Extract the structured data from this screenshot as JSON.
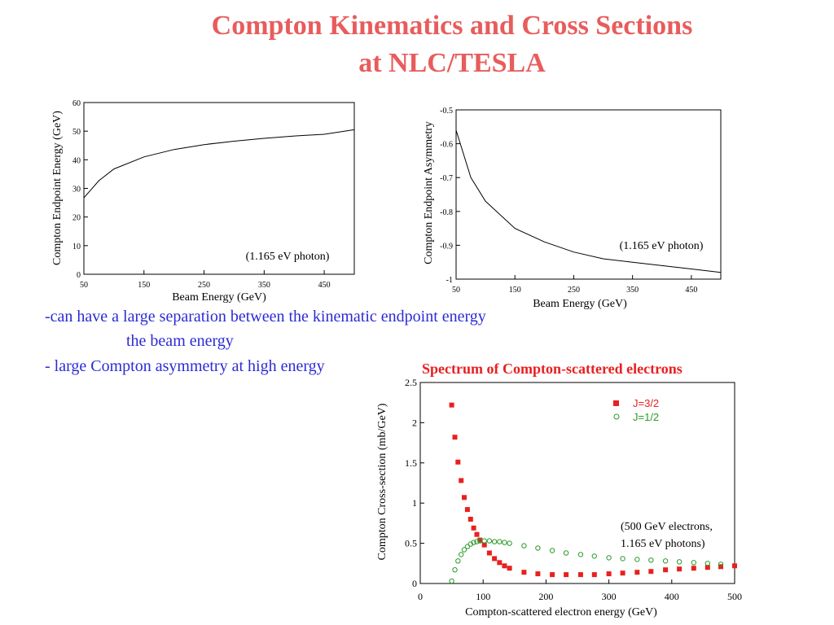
{
  "slide": {
    "title_line1": "Compton Kinematics and Cross Sections",
    "title_line2": "at NLC/TESLA",
    "bullet1_line1": "-can have a large separation between the kinematic endpoint energy",
    "bullet1_line2": "the beam energy",
    "bullet2": "- large Compton asymmetry at high energy",
    "spectrum_title": "Spectrum of Compton-scattered electrons"
  },
  "colors": {
    "title": "#e85c5c",
    "bullets": "#2b2bd6",
    "j32": "#e82020",
    "j12": "#2a9a2a"
  },
  "chart_data": [
    {
      "type": "line",
      "xlabel": "Beam Energy (GeV)",
      "ylabel": "Compton  Endpoint Energy (GeV)",
      "xlim": [
        50,
        500
      ],
      "ylim": [
        0,
        60
      ],
      "xticks": [
        50,
        150,
        250,
        350,
        450
      ],
      "yticks": [
        0,
        10,
        20,
        30,
        40,
        50,
        60
      ],
      "annotation": "(1.165 eV photon)",
      "series": [
        {
          "x": [
            50,
            75,
            100,
            150,
            200,
            250,
            300,
            350,
            400,
            450,
            500
          ],
          "y": [
            26.7,
            32.7,
            36.8,
            41.0,
            43.6,
            45.3,
            46.5,
            47.5,
            48.3,
            48.9,
            50.5
          ]
        }
      ]
    },
    {
      "type": "line",
      "xlabel": "Beam Energy (GeV)",
      "ylabel": "Compton Endpoint Asymmetry",
      "xlim": [
        50,
        500
      ],
      "ylim": [
        -1,
        -0.5
      ],
      "xticks": [
        50,
        150,
        250,
        350,
        450
      ],
      "yticks": [
        -1,
        -0.9,
        -0.8,
        -0.7,
        -0.6,
        -0.5
      ],
      "ytick_labels": [
        "-1",
        "-0.9",
        "-0.8",
        "-0.7",
        "-0.6",
        "-0.5"
      ],
      "annotation": "(1.165 eV photon)",
      "series": [
        {
          "x": [
            50,
            75,
            100,
            150,
            200,
            250,
            300,
            350,
            400,
            450,
            500
          ],
          "y": [
            -0.56,
            -0.7,
            -0.77,
            -0.85,
            -0.89,
            -0.92,
            -0.94,
            -0.95,
            -0.96,
            -0.97,
            -0.98
          ]
        }
      ]
    },
    {
      "type": "scatter",
      "xlabel": "Compton-scattered electron energy (GeV)",
      "ylabel": "Compton Cross-section (mb/GeV)",
      "xlim": [
        0,
        500
      ],
      "ylim": [
        0,
        2.5
      ],
      "xticks": [
        0,
        100,
        200,
        300,
        400,
        500
      ],
      "yticks": [
        0,
        0.5,
        1,
        1.5,
        2,
        2.5
      ],
      "ytick_labels": [
        "0",
        "0.5",
        "1",
        "1.5",
        "2",
        "2.5"
      ],
      "annotation_line1": "(500 GeV electrons,",
      "annotation_line2": "1.165 eV photons)",
      "legend_position": "top-right",
      "series": [
        {
          "name": "J=3/2",
          "marker": "filled-square",
          "x": [
            50,
            55,
            60,
            65,
            70,
            75,
            80,
            85,
            90,
            95,
            102,
            110,
            118,
            126,
            134,
            142,
            165,
            187,
            210,
            232,
            255,
            277,
            300,
            322,
            345,
            367,
            390,
            412,
            435,
            457,
            478,
            500
          ],
          "y": [
            2.22,
            1.82,
            1.51,
            1.28,
            1.07,
            0.92,
            0.8,
            0.69,
            0.61,
            0.54,
            0.48,
            0.38,
            0.31,
            0.26,
            0.22,
            0.19,
            0.14,
            0.12,
            0.11,
            0.11,
            0.11,
            0.11,
            0.12,
            0.13,
            0.14,
            0.15,
            0.17,
            0.18,
            0.19,
            0.2,
            0.21,
            0.22
          ]
        },
        {
          "name": "J=1/2",
          "marker": "open-circle",
          "x": [
            50,
            55,
            60,
            65,
            70,
            75,
            80,
            85,
            90,
            95,
            102,
            110,
            118,
            126,
            134,
            142,
            165,
            187,
            210,
            232,
            255,
            277,
            300,
            322,
            345,
            367,
            390,
            412,
            435,
            457,
            478
          ],
          "y": [
            0.03,
            0.17,
            0.28,
            0.36,
            0.42,
            0.46,
            0.49,
            0.51,
            0.52,
            0.53,
            0.53,
            0.53,
            0.52,
            0.52,
            0.51,
            0.5,
            0.47,
            0.44,
            0.41,
            0.38,
            0.36,
            0.34,
            0.32,
            0.31,
            0.3,
            0.29,
            0.28,
            0.27,
            0.26,
            0.25,
            0.24
          ]
        }
      ]
    }
  ]
}
